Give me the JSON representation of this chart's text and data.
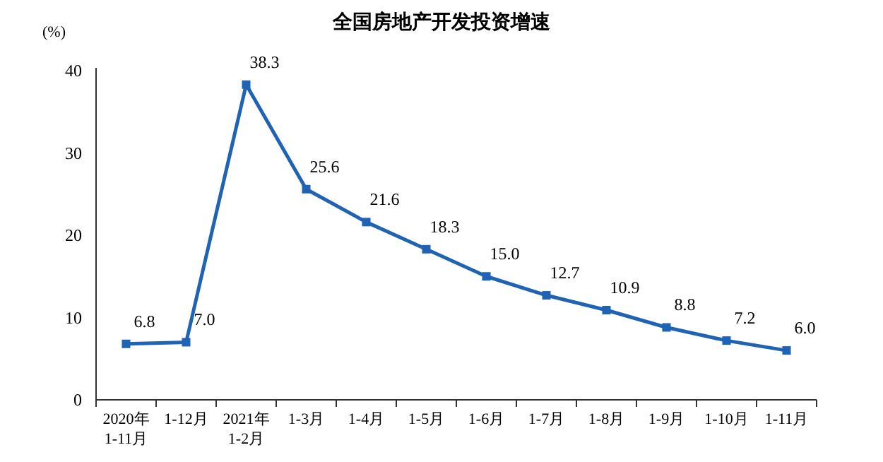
{
  "chart_data": {
    "type": "line",
    "title": "全国房地产开发投资增速",
    "ylabel": "(%)",
    "categories": [
      "2020年\n1-11月",
      "1-12月",
      "2021年\n1-2月",
      "1-3月",
      "1-4月",
      "1-5月",
      "1-6月",
      "1-7月",
      "1-8月",
      "1-9月",
      "1-10月",
      "1-11月"
    ],
    "series": [
      {
        "color": "#1f63b5",
        "values": [
          6.8,
          7.0,
          38.3,
          25.6,
          21.6,
          18.3,
          15.0,
          12.7,
          10.9,
          8.8,
          7.2,
          6.0
        ]
      }
    ],
    "value_labels": [
      "6.8",
      "7.0",
      "38.3",
      "25.6",
      "21.6",
      "18.3",
      "15.0",
      "12.7",
      "10.9",
      "8.8",
      "7.2",
      "6.0"
    ],
    "ylim": [
      0,
      40
    ],
    "yticks": [
      0,
      10,
      20,
      30,
      40
    ],
    "marker": "square",
    "line_style": "solid",
    "grid": false
  }
}
